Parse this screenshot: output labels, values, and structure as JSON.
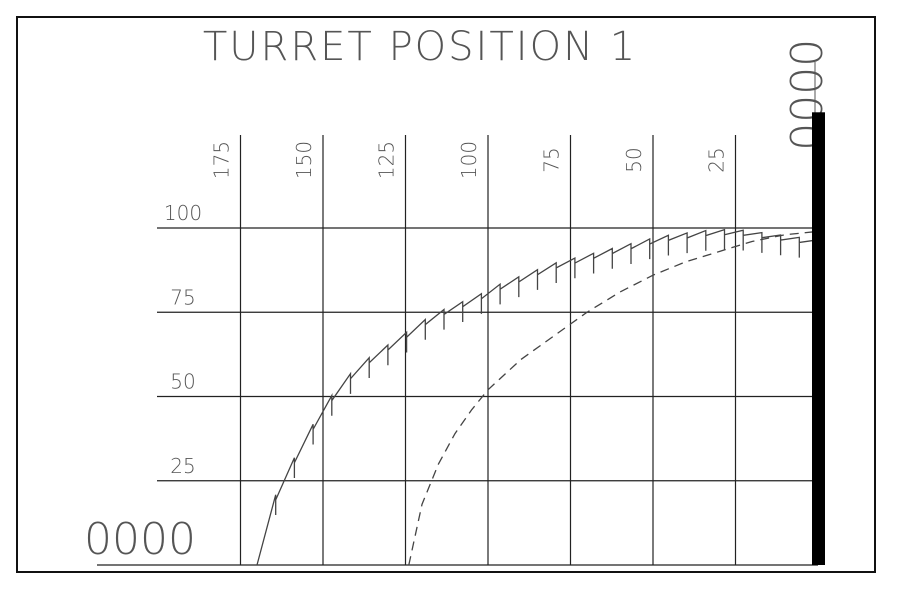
{
  "chart_data": {
    "type": "line",
    "title": "TURRET POSITION 1",
    "xlabel": "",
    "ylabel": "",
    "x_ticks": [
      "175",
      "150",
      "125",
      "100",
      "75",
      "50",
      "25"
    ],
    "y_ticks": [
      "100",
      "75",
      "50",
      "25"
    ],
    "xlim": [
      189,
      0
    ],
    "ylim": [
      0,
      102
    ],
    "x_readout": "0000",
    "y_readout": "0000",
    "level_bar_fraction": 0.9,
    "grid": true,
    "legend": "none",
    "series": [
      {
        "style": "sawtooth",
        "color": "#444444",
        "teeth": 30,
        "x": [
          170,
          168,
          164,
          160,
          156,
          152,
          148,
          142,
          136,
          130,
          124,
          118,
          112,
          104,
          96,
          88,
          80,
          72,
          64,
          56,
          48,
          40,
          32,
          24,
          16,
          8,
          0
        ],
        "y": [
          0,
          12,
          20,
          28,
          35,
          42,
          48,
          55,
          60,
          64,
          68,
          72,
          75,
          78,
          82,
          85,
          88,
          90,
          92,
          94,
          96,
          97,
          98,
          98,
          97,
          96,
          95
        ]
      },
      {
        "style": "dashed",
        "color": "#444444",
        "x": [
          124,
          120,
          115,
          110,
          105,
          100,
          90,
          80,
          70,
          60,
          50,
          40,
          30,
          20,
          10,
          0
        ],
        "y": [
          0,
          18,
          30,
          39,
          46,
          52,
          61,
          68,
          75,
          81,
          86,
          90,
          93,
          96,
          98,
          99
        ]
      }
    ]
  }
}
